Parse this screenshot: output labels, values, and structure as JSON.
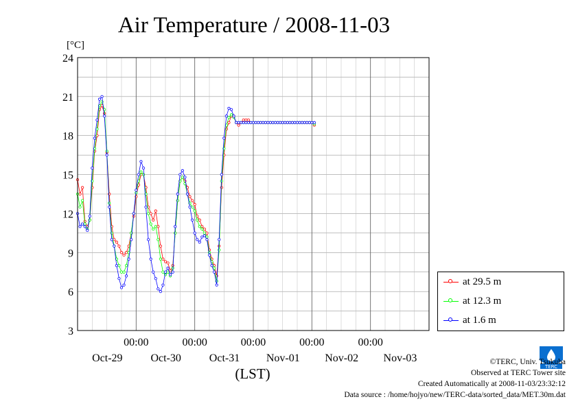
{
  "chart_data": {
    "type": "line",
    "title": "Air Temperature / 2008-11-03",
    "ylabel": "[°C]",
    "xlabel": "(LST)",
    "ylim": [
      3,
      24
    ],
    "yticks": [
      3,
      6,
      9,
      12,
      15,
      18,
      21,
      24
    ],
    "x_unit": "hours since 2008-10-28 00:00 LST",
    "xlim": [
      0,
      144
    ],
    "time_tick_label": "00:00",
    "day_labels": [
      "Oct-29",
      "Oct-30",
      "Oct-31",
      "Nov-01",
      "Nov-02",
      "Nov-03"
    ],
    "grid": true,
    "legend_position": "right",
    "series": [
      {
        "name": "at 29.5 m",
        "color": "#ff0000",
        "x": [
          0,
          1,
          2,
          3,
          4,
          5,
          6,
          7,
          8,
          9,
          10,
          11,
          12,
          13,
          14,
          15,
          16,
          17,
          18,
          19,
          20,
          21,
          22,
          23,
          24,
          25,
          26,
          27,
          28,
          29,
          30,
          31,
          32,
          33,
          34,
          35,
          36,
          37,
          38,
          39,
          40,
          41,
          42,
          43,
          44,
          45,
          46,
          47,
          48,
          49,
          50,
          51,
          52,
          53,
          54,
          55,
          56,
          57,
          58,
          59,
          60,
          61,
          62,
          63,
          64,
          65,
          66,
          67,
          68,
          69,
          70,
          71,
          72,
          73,
          74,
          75,
          76,
          77,
          78,
          79,
          80,
          81,
          82,
          83,
          84,
          85,
          86,
          87,
          88,
          89,
          90,
          91,
          92,
          93,
          94,
          95,
          96,
          97
        ],
        "values": [
          14.6,
          13.5,
          14.0,
          11.4,
          11.0,
          11.5,
          14.0,
          16.8,
          18.0,
          20.0,
          20.3,
          19.7,
          16.7,
          13.5,
          11.0,
          10.0,
          9.8,
          9.5,
          9.0,
          8.8,
          9.0,
          9.5,
          10.5,
          11.8,
          13.3,
          14.2,
          15.0,
          15.0,
          14.0,
          12.5,
          12.0,
          11.5,
          12.2,
          11.0,
          9.5,
          8.5,
          8.3,
          8.2,
          7.6,
          8.0,
          10.5,
          13.0,
          14.5,
          14.8,
          14.5,
          14.0,
          13.3,
          13.0,
          12.7,
          11.8,
          11.5,
          11.0,
          10.8,
          10.5,
          9.2,
          8.5,
          8.0,
          7.2,
          9.5,
          14.0,
          16.5,
          18.5,
          19.0,
          19.5,
          19.5,
          19.0,
          18.8,
          19.0,
          19.2,
          19.2,
          19.2,
          19.0,
          19.0,
          19.0,
          19.0,
          19.0,
          19.0,
          19.0,
          19.0,
          19.0,
          19.0,
          19.0,
          19.0,
          19.0,
          19.0,
          19.0,
          19.0,
          19.0,
          19.0,
          19.0,
          19.0,
          19.0,
          19.0,
          19.0,
          19.0,
          19.0,
          19.0,
          18.8
        ]
      },
      {
        "name": "at 12.3 m",
        "color": "#00ff00",
        "x": [
          0,
          1,
          2,
          3,
          4,
          5,
          6,
          7,
          8,
          9,
          10,
          11,
          12,
          13,
          14,
          15,
          16,
          17,
          18,
          19,
          20,
          21,
          22,
          23,
          24,
          25,
          26,
          27,
          28,
          29,
          30,
          31,
          32,
          33,
          34,
          35,
          36,
          37,
          38,
          39,
          40,
          41,
          42,
          43,
          44,
          45,
          46,
          47,
          48,
          49,
          50,
          51,
          52,
          53,
          54,
          55,
          56,
          57,
          58,
          59,
          60,
          61,
          62,
          63,
          64,
          65,
          66,
          67,
          68,
          69,
          70,
          71,
          72,
          73,
          74,
          75,
          76,
          77,
          78,
          79,
          80,
          81,
          82,
          83,
          84,
          85,
          86,
          87,
          88,
          89,
          90,
          91,
          92,
          93,
          94,
          95,
          96,
          97
        ],
        "values": [
          13.5,
          12.5,
          13.0,
          11.2,
          10.8,
          11.5,
          14.5,
          17.0,
          18.5,
          20.3,
          20.6,
          20.0,
          16.8,
          12.8,
          10.5,
          9.5,
          8.5,
          8.0,
          7.5,
          7.5,
          8.0,
          9.0,
          10.5,
          12.0,
          13.6,
          14.5,
          15.2,
          15.0,
          13.5,
          12.0,
          11.2,
          10.8,
          11.0,
          10.0,
          8.5,
          7.5,
          7.3,
          7.5,
          7.2,
          7.8,
          10.5,
          13.0,
          14.5,
          14.8,
          14.3,
          13.5,
          12.8,
          12.5,
          12.2,
          11.5,
          11.0,
          10.8,
          10.5,
          10.2,
          9.0,
          8.3,
          7.8,
          6.8,
          9.2,
          14.5,
          17.0,
          18.8,
          19.4,
          19.6,
          19.4,
          19.0,
          19.0,
          19.0,
          19.0,
          19.0,
          19.0,
          19.0,
          19.0,
          19.0,
          19.0,
          19.0,
          19.0,
          19.0,
          19.0,
          19.0,
          19.0,
          19.0,
          19.0,
          19.0,
          19.0,
          19.0,
          19.0,
          19.0,
          19.0,
          19.0,
          19.0,
          19.0,
          19.0,
          19.0,
          19.0,
          19.0,
          19.0,
          18.9
        ]
      },
      {
        "name": "at 1.6 m",
        "color": "#0000ff",
        "x": [
          0,
          1,
          2,
          3,
          4,
          5,
          6,
          7,
          8,
          9,
          10,
          11,
          12,
          13,
          14,
          15,
          16,
          17,
          18,
          19,
          20,
          21,
          22,
          23,
          24,
          25,
          26,
          27,
          28,
          29,
          30,
          31,
          32,
          33,
          34,
          35,
          36,
          37,
          38,
          39,
          40,
          41,
          42,
          43,
          44,
          45,
          46,
          47,
          48,
          49,
          50,
          51,
          52,
          53,
          54,
          55,
          56,
          57,
          58,
          59,
          60,
          61,
          62,
          63,
          64,
          65,
          66,
          67,
          68,
          69,
          70,
          71,
          72,
          73,
          74,
          75,
          76,
          77,
          78,
          79,
          80,
          81,
          82,
          83,
          84,
          85,
          86,
          87,
          88,
          89,
          90,
          91,
          92,
          93,
          94,
          95,
          96,
          97
        ],
        "values": [
          12.0,
          11.0,
          11.2,
          11.0,
          10.7,
          11.8,
          15.5,
          17.8,
          19.2,
          20.8,
          21.0,
          19.5,
          16.5,
          12.5,
          10.0,
          9.5,
          8.0,
          7.0,
          6.3,
          6.5,
          7.2,
          8.5,
          10.0,
          12.0,
          13.8,
          15.0,
          16.0,
          15.5,
          12.5,
          10.0,
          8.5,
          7.5,
          7.0,
          6.2,
          6.0,
          6.5,
          7.5,
          7.8,
          7.3,
          7.5,
          11.0,
          13.5,
          15.0,
          15.3,
          14.8,
          13.5,
          12.5,
          11.5,
          10.5,
          10.0,
          9.8,
          10.2,
          10.3,
          10.0,
          8.8,
          8.0,
          7.5,
          6.5,
          10.0,
          15.0,
          17.8,
          19.5,
          20.1,
          20.0,
          19.5,
          19.0,
          19.0,
          19.0,
          19.0,
          19.0,
          19.0,
          19.0,
          19.0,
          19.0,
          19.0,
          19.0,
          19.0,
          19.0,
          19.0,
          19.0,
          19.0,
          19.0,
          19.0,
          19.0,
          19.0,
          19.0,
          19.0,
          19.0,
          19.0,
          19.0,
          19.0,
          19.0,
          19.0,
          19.0,
          19.0,
          19.0,
          19.0,
          19.0
        ]
      }
    ]
  },
  "credits": {
    "copyright": "©TERC, Univ. Tsukuba",
    "observed": "Observed at TERC Tower site",
    "created": "Created Automatically at 2008-11-03/23:32:12",
    "source": "Data source : /home/hojyo/new/TERC-data/sorted_data/MET.30m.dat"
  },
  "logo": {
    "name": "terc-logo",
    "text": "TERC",
    "color": "#0a6fd0"
  }
}
